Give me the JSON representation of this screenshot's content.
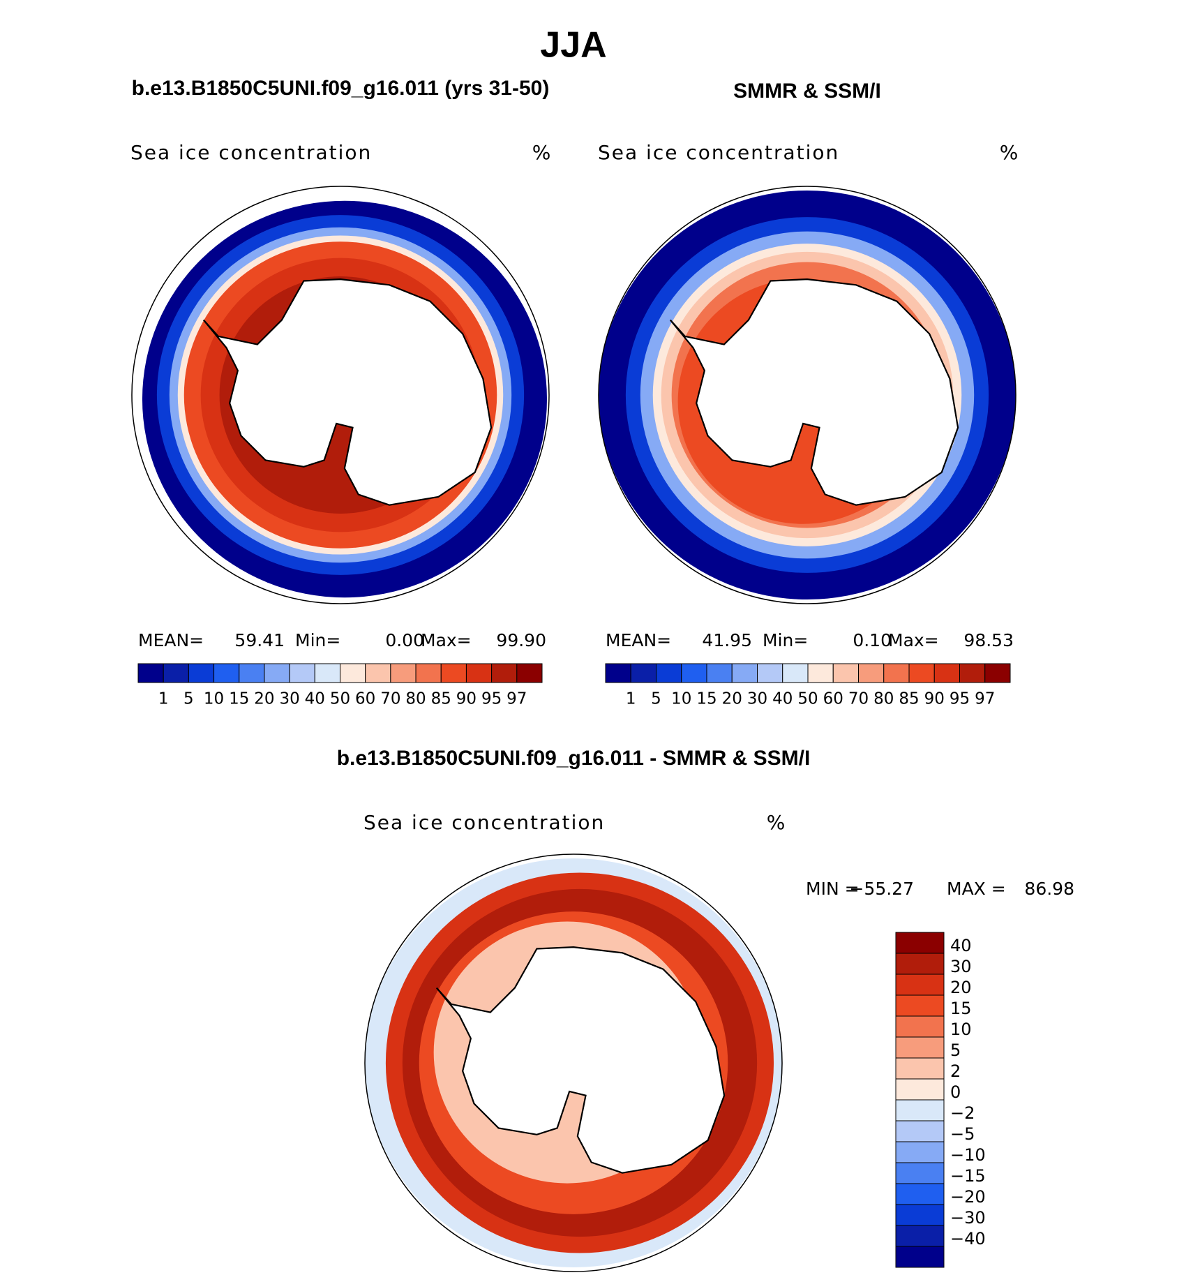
{
  "title": "JJA",
  "panels": [
    {
      "subtitle": "b.e13.B1850C5UNI.f09_g16.011 (yrs 31-50)",
      "label": "Sea ice concentration",
      "unit": "%",
      "stats": [
        "MEAN=",
        "59.41",
        "Min=",
        "0.00",
        "Max=",
        "99.90"
      ]
    },
    {
      "subtitle": "SMMR & SSM/I",
      "label": "Sea ice concentration",
      "unit": "%",
      "stats": [
        "MEAN=",
        "41.95",
        "Min=",
        "0.10",
        "Max=",
        "98.53"
      ]
    }
  ],
  "colorbar": {
    "levels": [
      "1",
      "5",
      "10",
      "15",
      "20",
      "30",
      "40",
      "50",
      "60",
      "70",
      "80",
      "85",
      "90",
      "95",
      "97"
    ],
    "colors": [
      "#00008b",
      "#0a1fa8",
      "#0a3cd6",
      "#1f5ff0",
      "#4a80f2",
      "#86aaf5",
      "#b4c9f7",
      "#d9e8f9",
      "#fde9dc",
      "#fbc5ad",
      "#f79c7c",
      "#f2734e",
      "#ec4a22",
      "#d83214",
      "#b11d0b",
      "#8b0000"
    ]
  },
  "difference": {
    "title": "b.e13.B1850C5UNI.f09_g16.011 - SMMR & SSM/I",
    "label": "Sea ice concentration",
    "unit": "%",
    "stats": [
      "MIN =",
      "−55.27",
      "MAX =",
      "86.98"
    ],
    "levels": [
      "40",
      "30",
      "20",
      "15",
      "10",
      "5",
      "2",
      "0",
      "−2",
      "−5",
      "−10",
      "−15",
      "−20",
      "−30",
      "−40"
    ],
    "colors": [
      "#8b0000",
      "#b11d0b",
      "#d83214",
      "#ec4a22",
      "#f2734e",
      "#f79c7c",
      "#fbc5ad",
      "#fde9dc",
      "#d9e8f9",
      "#b4c9f7",
      "#86aaf5",
      "#4a80f2",
      "#1f5ff0",
      "#0a3cd6",
      "#0a1fa8",
      "#00008b"
    ]
  }
}
